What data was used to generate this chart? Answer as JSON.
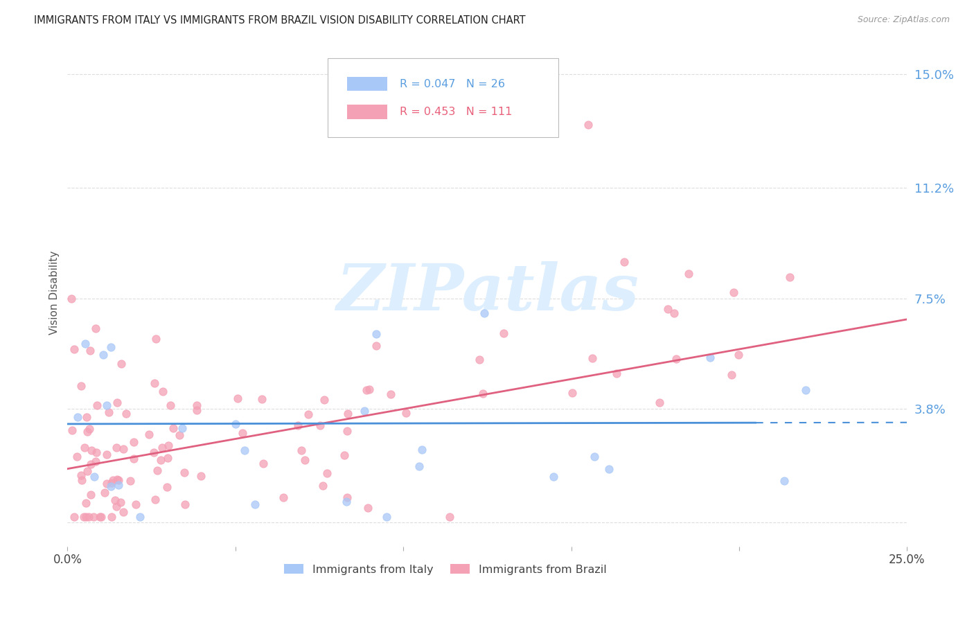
{
  "title": "IMMIGRANTS FROM ITALY VS IMMIGRANTS FROM BRAZIL VISION DISABILITY CORRELATION CHART",
  "source": "Source: ZipAtlas.com",
  "ylabel": "Vision Disability",
  "yticks": [
    0.0,
    0.038,
    0.075,
    0.112,
    0.15
  ],
  "ytick_labels": [
    "",
    "3.8%",
    "7.5%",
    "11.2%",
    "15.0%"
  ],
  "xlim": [
    0.0,
    0.25
  ],
  "ylim": [
    -0.008,
    0.162
  ],
  "italy_color": "#a8c8f8",
  "brazil_color": "#f4a0b5",
  "italy_line_color": "#4a90d9",
  "brazil_line_color": "#e06080",
  "background_color": "#ffffff",
  "grid_color": "#dddddd",
  "watermark": "ZIPatlas",
  "watermark_color": "#ddeeff",
  "italy_label": "Immigrants from Italy",
  "brazil_label": "Immigrants from Brazil",
  "italy_R_text": "R = 0.047   N = 26",
  "brazil_R_text": "R = 0.453   N = 111",
  "italy_color_text": "#5a9ee0",
  "brazil_color_text": "#e8607a",
  "italy_line_solid_end": 0.205,
  "italy_intercept": 0.033,
  "italy_slope": 0.002,
  "brazil_intercept": 0.018,
  "brazil_slope": 0.2
}
